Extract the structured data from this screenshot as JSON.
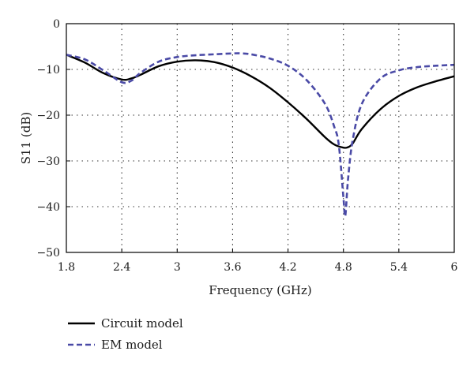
{
  "chart_data": {
    "type": "line",
    "xlabel": "Frequency (GHz)",
    "ylabel": "S11 (dB)",
    "xlim": [
      1.8,
      6.0
    ],
    "ylim": [
      -50,
      0
    ],
    "xticks": [
      1.8,
      2.4,
      3.0,
      3.6,
      4.2,
      4.8,
      5.4,
      6.0
    ],
    "xtick_labels": [
      "1.8",
      "2.4",
      "3",
      "3.6",
      "4.2",
      "4.8",
      "5.4",
      "6"
    ],
    "yticks": [
      0,
      -10,
      -20,
      -30,
      -40,
      -50
    ],
    "ytick_labels": [
      "0",
      "−10",
      "−20",
      "−30",
      "−40",
      "−50"
    ],
    "grid": "dotted",
    "legend_position": "bottom-left, below plot",
    "series": [
      {
        "name": "Circuit model",
        "color": "#000000",
        "style": "solid",
        "x": [
          1.8,
          2.0,
          2.2,
          2.4,
          2.5,
          2.6,
          2.8,
          3.0,
          3.2,
          3.4,
          3.6,
          3.8,
          4.0,
          4.2,
          4.4,
          4.6,
          4.7,
          4.8,
          4.85,
          4.9,
          5.0,
          5.2,
          5.4,
          5.6,
          5.8,
          6.0
        ],
        "y": [
          -6.8,
          -8.5,
          -10.8,
          -12.2,
          -12.0,
          -11.2,
          -9.3,
          -8.3,
          -8.0,
          -8.4,
          -9.6,
          -11.5,
          -14.0,
          -17.2,
          -20.8,
          -24.8,
          -26.4,
          -27.1,
          -27.0,
          -26.2,
          -23.0,
          -18.7,
          -15.8,
          -13.9,
          -12.6,
          -11.5
        ]
      },
      {
        "name": "EM model",
        "color": "#4a4aa6",
        "style": "dashed",
        "x": [
          1.8,
          2.0,
          2.2,
          2.4,
          2.5,
          2.6,
          2.8,
          3.0,
          3.2,
          3.4,
          3.6,
          3.7,
          3.8,
          4.0,
          4.2,
          4.4,
          4.6,
          4.7,
          4.75,
          4.8,
          4.82,
          4.85,
          4.9,
          5.0,
          5.2,
          5.4,
          5.6,
          5.8,
          6.0
        ],
        "y": [
          -6.8,
          -7.8,
          -10.2,
          -12.8,
          -12.5,
          -10.8,
          -8.3,
          -7.3,
          -6.9,
          -6.7,
          -6.5,
          -6.5,
          -6.7,
          -7.6,
          -9.2,
          -12.3,
          -17.5,
          -22.5,
          -26.5,
          -38.0,
          -42.0,
          -34.0,
          -25.5,
          -17.5,
          -12.0,
          -10.2,
          -9.5,
          -9.2,
          -9.0
        ]
      }
    ]
  }
}
